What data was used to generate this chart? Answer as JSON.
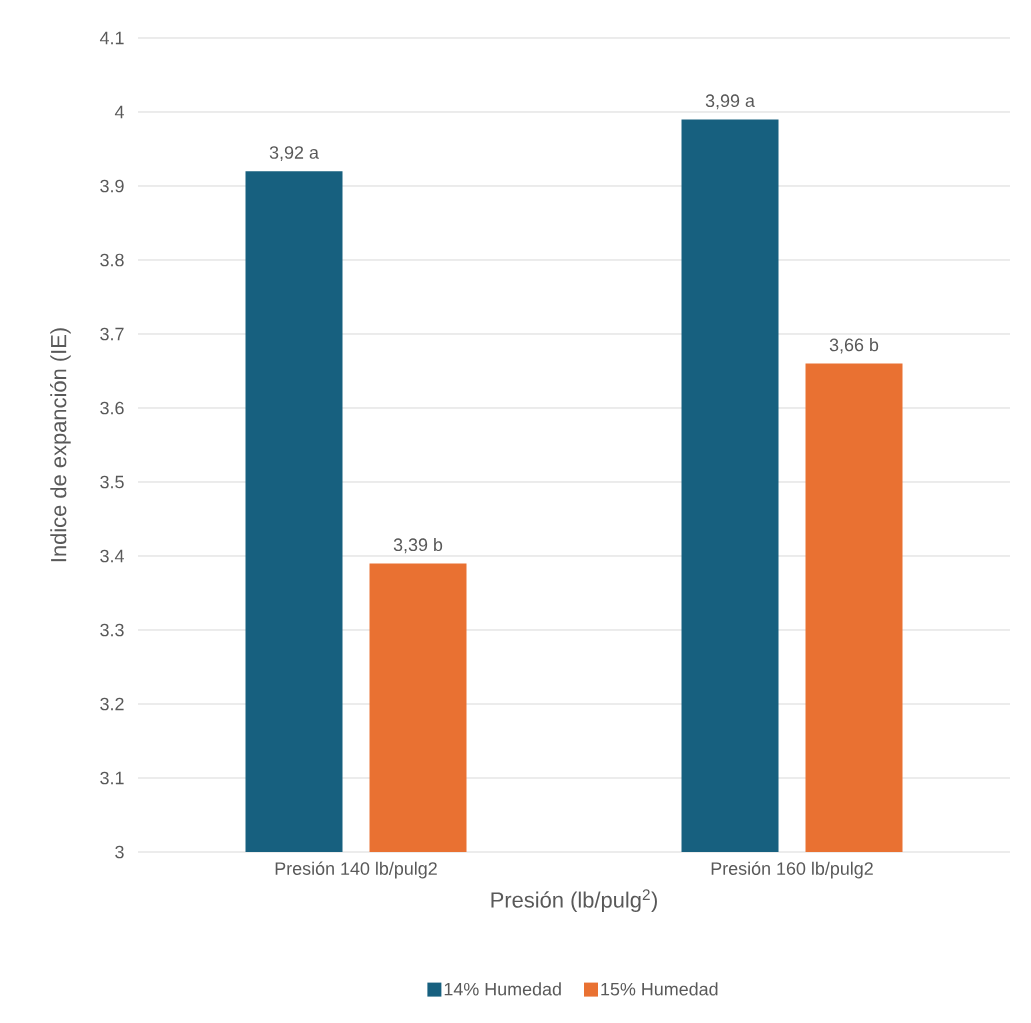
{
  "chart_data": {
    "type": "bar",
    "xlabel": "Presión (lb/pulg$^{2}$)",
    "ylabel": "Indice de expanción (IE)",
    "categories": [
      "Presión  140 lb/pulg2",
      "Presión  160 lb/pulg2"
    ],
    "series": [
      {
        "name": "14% Humedad",
        "color": "#17607f",
        "values": [
          3.92,
          3.99
        ],
        "value_labels": [
          "3,92 a",
          "3,99 a"
        ]
      },
      {
        "name": "15% Humedad",
        "color": "#e97132",
        "values": [
          3.39,
          3.66
        ],
        "value_labels": [
          "3,39 b",
          "3,66 b"
        ]
      }
    ],
    "ylim": [
      3,
      4.1
    ],
    "yticks": [
      3,
      3.1,
      3.2,
      3.3,
      3.4,
      3.5,
      3.6,
      3.7,
      3.8,
      3.9,
      4,
      4.1
    ],
    "grid": "y",
    "legend": "bottom"
  }
}
